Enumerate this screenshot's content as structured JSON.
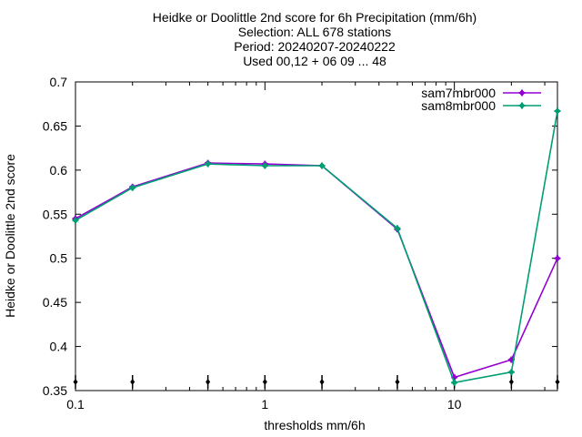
{
  "chart_data": {
    "type": "line",
    "title_lines": [
      "Heidke or Doolittle 2nd score  for 6h Precipitation (mm/6h)",
      "Selection: ALL    678 stations",
      "Period: 20240207-20240222",
      "Used 00,12 + 06 09 ... 48"
    ],
    "xlabel": "thresholds mm/6h",
    "ylabel": "Heidke or Doolittle 2nd score",
    "x_scale": "log",
    "xlim": [
      0.1,
      35
    ],
    "ylim": [
      0.35,
      0.7
    ],
    "x_ticks": [
      0.1,
      1,
      10
    ],
    "x_tick_labels": [
      "0.1",
      "1",
      "10"
    ],
    "y_ticks": [
      0.35,
      0.4,
      0.45,
      0.5,
      0.55,
      0.6,
      0.65,
      0.7
    ],
    "y_tick_labels": [
      "0.35",
      "0.4",
      "0.45",
      "0.5",
      "0.55",
      "0.6",
      "0.65",
      "0.7"
    ],
    "x": [
      0.1,
      0.2,
      0.5,
      1,
      2,
      5,
      10,
      20,
      35
    ],
    "series": [
      {
        "name": "sam7mbr000",
        "color": "#9400d3",
        "values": [
          0.545,
          0.581,
          0.608,
          0.607,
          0.605,
          0.533,
          0.365,
          0.385,
          0.5
        ]
      },
      {
        "name": "sam8mbr000",
        "color": "#009e73",
        "values": [
          0.543,
          0.58,
          0.607,
          0.605,
          0.605,
          0.534,
          0.359,
          0.371,
          0.667
        ]
      }
    ],
    "legend_position": "top-right",
    "grid": false
  }
}
